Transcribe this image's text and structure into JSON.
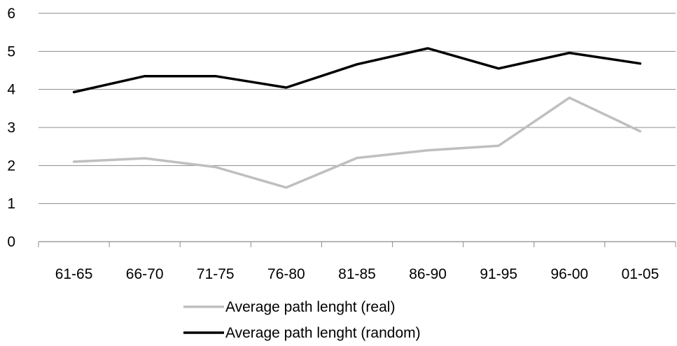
{
  "chart_data": {
    "type": "line",
    "title": "",
    "xlabel": "",
    "ylabel": "",
    "categories": [
      "61-65",
      "66-70",
      "71-75",
      "76-80",
      "81-85",
      "86-90",
      "91-95",
      "96-00",
      "01-05"
    ],
    "ylim": [
      0,
      6
    ],
    "yticks": [
      "0",
      "1",
      "2",
      "3",
      "4",
      "5",
      "6"
    ],
    "grid": "horizontal",
    "legend_position": "bottom",
    "series": [
      {
        "name": "Average path lenght (real)",
        "color": "#bfbfbf",
        "values": [
          2.1,
          2.19,
          1.96,
          1.42,
          2.2,
          2.4,
          2.52,
          3.78,
          2.9
        ]
      },
      {
        "name": "Average path lenght (random)",
        "color": "#000000",
        "values": [
          3.93,
          4.35,
          4.35,
          4.05,
          4.66,
          5.08,
          4.55,
          4.96,
          4.68
        ]
      }
    ]
  }
}
